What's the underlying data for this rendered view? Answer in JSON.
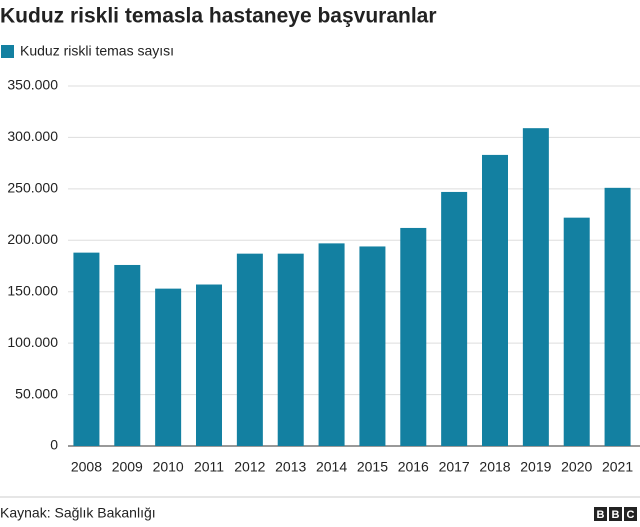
{
  "chart_data": {
    "type": "bar",
    "title": "Kuduz riskli temasla hastaneye başvuranlar",
    "legend": "Kuduz riskli temas sayısı",
    "categories": [
      "2008",
      "2009",
      "2010",
      "2011",
      "2012",
      "2013",
      "2014",
      "2015",
      "2016",
      "2017",
      "2018",
      "2019",
      "2020",
      "2021"
    ],
    "values": [
      188000,
      176000,
      153000,
      157000,
      187000,
      187000,
      197000,
      194000,
      212000,
      247000,
      283000,
      309000,
      222000,
      251000
    ],
    "color": "#1380a1",
    "ylim": [
      0,
      350000
    ],
    "yticks": [
      0,
      {
        "value": 50000,
        "label": "50.000"
      },
      {
        "value": 100000,
        "label": "100.000"
      },
      {
        "value": 150000,
        "label": "150.000"
      },
      {
        "value": 200000,
        "label": "200.000"
      },
      {
        "value": 250000,
        "label": "250.000"
      },
      {
        "value": 300000,
        "label": "300.000"
      },
      {
        "value": 350000,
        "label": "350.000"
      }
    ],
    "grid": true,
    "source": "Kaynak: Sağlık Bakanlığı",
    "logo": [
      "B",
      "B",
      "C"
    ]
  }
}
